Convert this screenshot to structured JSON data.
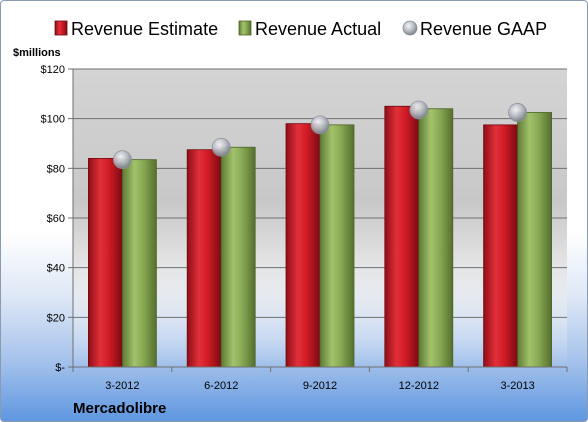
{
  "chart_data": {
    "type": "bar",
    "title": "",
    "unit_label": "$millions",
    "footer_label": "Mercadolibre",
    "categories": [
      "3-2012",
      "6-2012",
      "9-2012",
      "12-2012",
      "3-2013"
    ],
    "series": [
      {
        "name": "Revenue Estimate",
        "type": "bar",
        "values": [
          84,
          87.5,
          98,
          105,
          97.5
        ],
        "color": "#d81e2a"
      },
      {
        "name": "Revenue Actual",
        "type": "bar",
        "values": [
          83.5,
          88.5,
          97.5,
          104,
          102.5
        ],
        "color": "#8db05a"
      },
      {
        "name": "Revenue GAAP",
        "type": "marker",
        "values": [
          83.5,
          88.5,
          97.5,
          103.5,
          102.5
        ],
        "color": "#b8bcc4"
      }
    ],
    "ylim": [
      0,
      120
    ],
    "yticks": [
      {
        "value": 0,
        "label": "$-"
      },
      {
        "value": 20,
        "label": "$20"
      },
      {
        "value": 40,
        "label": "$40"
      },
      {
        "value": 60,
        "label": "$60"
      },
      {
        "value": 80,
        "label": "$80"
      },
      {
        "value": 100,
        "label": "$100"
      },
      {
        "value": 120,
        "label": "$120"
      }
    ],
    "grid": true,
    "legend_position": "top"
  }
}
